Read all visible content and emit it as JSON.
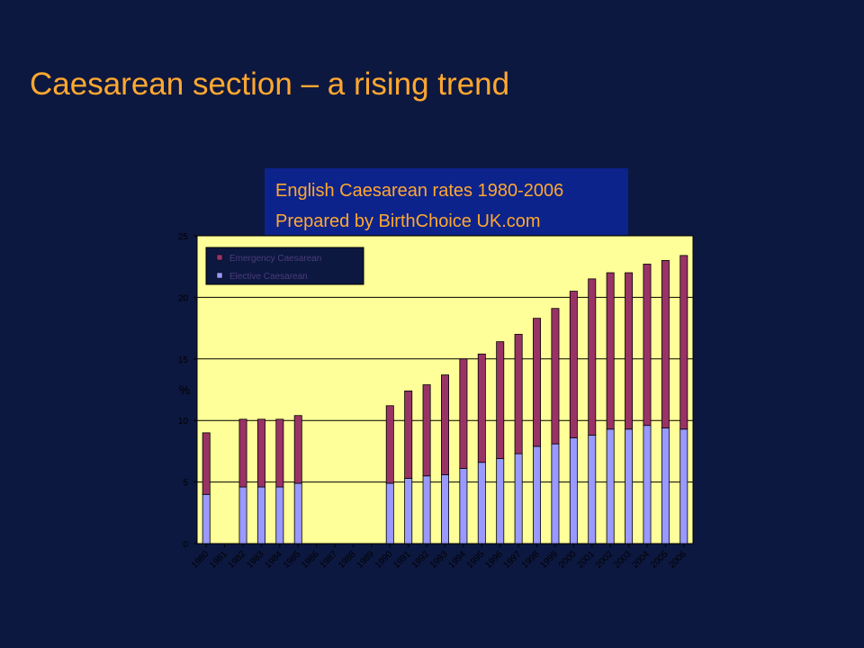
{
  "slide": {
    "title": "Caesarean section – a rising trend",
    "background": "#0d1840",
    "title_color": "#ffa830"
  },
  "caption": {
    "line1": "English Caesarean rates 1980-2006",
    "line2": "Prepared by BirthChoice UK.com",
    "background": "#0c238c",
    "text_color": "#ffa830"
  },
  "chart_data": {
    "type": "bar",
    "stacked": true,
    "title": "",
    "xlabel": "",
    "ylabel": "%",
    "ylim": [
      0,
      25
    ],
    "yticks": [
      0,
      5,
      10,
      15,
      20,
      25
    ],
    "grid": true,
    "legend_position": "top-left",
    "plot_background": "#ffff99",
    "categories": [
      "1980",
      "1981",
      "1982",
      "1983",
      "1984",
      "1985",
      "1986",
      "1987",
      "1988",
      "1989",
      "1990",
      "1991",
      "1992",
      "1993",
      "1994",
      "1995",
      "1996",
      "1997",
      "1998",
      "1999",
      "2000",
      "2001",
      "2002",
      "2003",
      "2004",
      "2005",
      "2006"
    ],
    "series": [
      {
        "name": "Elective Caesarean",
        "color": "#9999ff",
        "values": [
          4.0,
          null,
          4.6,
          4.6,
          4.6,
          4.9,
          null,
          null,
          null,
          null,
          4.9,
          5.3,
          5.5,
          5.6,
          6.1,
          6.6,
          6.9,
          7.3,
          7.9,
          8.1,
          8.6,
          8.8,
          9.3,
          9.3,
          9.6,
          9.4,
          9.3
        ]
      },
      {
        "name": "Emergency Caesarean",
        "color": "#993366",
        "values": [
          5.0,
          null,
          5.5,
          5.5,
          5.5,
          5.5,
          null,
          null,
          null,
          null,
          6.3,
          7.1,
          7.4,
          8.1,
          8.9,
          8.8,
          9.5,
          9.7,
          10.4,
          11.0,
          11.9,
          12.7,
          12.7,
          12.7,
          13.1,
          13.6,
          14.1
        ]
      }
    ]
  }
}
